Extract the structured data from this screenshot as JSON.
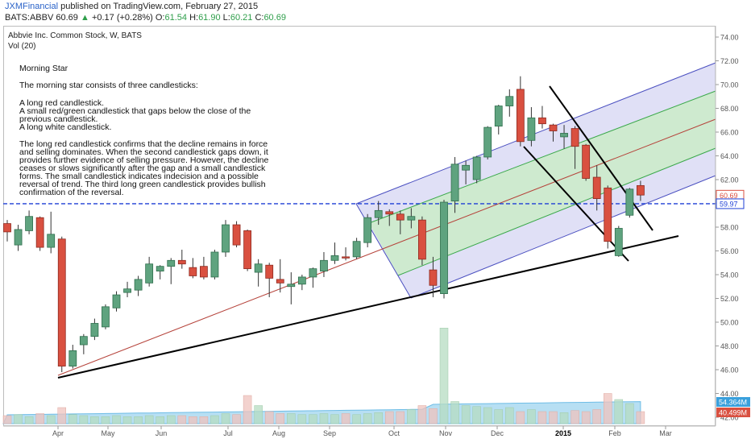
{
  "header": {
    "author": "JXMFinancial",
    "published": "published on TradingView.com, February 27, 2015",
    "ticker": "BATS:ABBV",
    "price": "60.69",
    "change": "+0.17 (+0.28%)",
    "o_label": "O:",
    "o": "61.54",
    "h_label": "H:",
    "h": "61.90",
    "l_label": "L:",
    "l": "60.21",
    "c_label": "C:",
    "c": "60.69"
  },
  "chart_title": "Abbvie Inc. Common Stock, W, BATS",
  "indicator": "Vol (20)",
  "notes": {
    "title": "Morning Star",
    "intro": "The morning star consists of three candlesticks:",
    "item1": "A long red candlestick.",
    "item2a": "A small red/green candlestick that gaps below the close of the",
    "item2b": "previous candlestick.",
    "item3": "A long white candlestick.",
    "para": [
      "The long red  candlestick confirms that the decline remains in force",
      "and selling dominates. When the second candlestick gaps down, it",
      "provides further evidence of selling pressure. However, the decline",
      "ceases or slows significantly after the gap and a small candlestick",
      "forms. The small candlestick indicates indecision and a possible",
      "reversal of trend. The third long green candlestick provides bullish",
      "confirmation of the reversal."
    ]
  },
  "colors": {
    "up": "#5fa37f",
    "down": "#d95040",
    "channel_blue": "#4a4fc0",
    "channel_fill": "#d5d6f3",
    "green_band": "#c9ecc6",
    "hline": "#1e3fd6",
    "volume_area": "#9fd4ef"
  },
  "chart_data": {
    "type": "candlestick",
    "x_tick_labels": [
      "Apr",
      "May",
      "Jun",
      "Jul",
      "Aug",
      "Sep",
      "Oct",
      "Nov",
      "Dec",
      "2015",
      "Feb",
      "Mar"
    ],
    "y_tick_labels": [
      "42.00",
      "44.00",
      "46.00",
      "48.00",
      "50.00",
      "52.00",
      "54.00",
      "56.00",
      "58.00",
      "60.00",
      "62.00",
      "64.00",
      "66.00",
      "68.00",
      "70.00",
      "72.00",
      "74.00"
    ],
    "ylim": [
      42,
      75
    ],
    "candles": [
      {
        "o": 58.3,
        "h": 58.6,
        "l": 56.8,
        "c": 57.6
      },
      {
        "o": 56.5,
        "h": 58.2,
        "l": 56.0,
        "c": 57.8
      },
      {
        "o": 57.7,
        "h": 59.4,
        "l": 57.4,
        "c": 58.9
      },
      {
        "o": 58.8,
        "h": 58.9,
        "l": 56.0,
        "c": 56.3
      },
      {
        "o": 56.3,
        "h": 59.3,
        "l": 55.8,
        "c": 57.4
      },
      {
        "o": 57.0,
        "h": 57.2,
        "l": 45.8,
        "c": 46.3
      },
      {
        "o": 46.3,
        "h": 48.1,
        "l": 46.1,
        "c": 47.6
      },
      {
        "o": 48.1,
        "h": 49.0,
        "l": 47.3,
        "c": 48.8
      },
      {
        "o": 48.8,
        "h": 50.3,
        "l": 48.5,
        "c": 49.9
      },
      {
        "o": 49.6,
        "h": 51.5,
        "l": 49.4,
        "c": 51.3
      },
      {
        "o": 51.2,
        "h": 52.6,
        "l": 50.9,
        "c": 52.3
      },
      {
        "o": 52.5,
        "h": 53.4,
        "l": 52.1,
        "c": 52.8
      },
      {
        "o": 52.7,
        "h": 53.9,
        "l": 52.2,
        "c": 53.6
      },
      {
        "o": 53.3,
        "h": 55.5,
        "l": 53.0,
        "c": 54.9
      },
      {
        "o": 54.3,
        "h": 54.8,
        "l": 53.6,
        "c": 54.7
      },
      {
        "o": 54.7,
        "h": 55.4,
        "l": 53.2,
        "c": 55.2
      },
      {
        "o": 55.2,
        "h": 56.1,
        "l": 54.5,
        "c": 54.9
      },
      {
        "o": 54.6,
        "h": 55.4,
        "l": 53.7,
        "c": 53.9
      },
      {
        "o": 54.7,
        "h": 55.5,
        "l": 53.6,
        "c": 53.8
      },
      {
        "o": 53.8,
        "h": 56.1,
        "l": 53.6,
        "c": 55.9
      },
      {
        "o": 55.9,
        "h": 58.6,
        "l": 55.5,
        "c": 58.2
      },
      {
        "o": 58.2,
        "h": 58.5,
        "l": 56.3,
        "c": 56.5
      },
      {
        "o": 57.7,
        "h": 57.8,
        "l": 54.3,
        "c": 54.5
      },
      {
        "o": 54.2,
        "h": 55.3,
        "l": 53.0,
        "c": 54.9
      },
      {
        "o": 54.8,
        "h": 55.0,
        "l": 52.1,
        "c": 53.7
      },
      {
        "o": 53.6,
        "h": 55.3,
        "l": 52.5,
        "c": 53.3
      },
      {
        "o": 53.0,
        "h": 54.2,
        "l": 51.5,
        "c": 53.2
      },
      {
        "o": 53.2,
        "h": 54.0,
        "l": 52.7,
        "c": 53.8
      },
      {
        "o": 53.8,
        "h": 54.6,
        "l": 52.9,
        "c": 54.5
      },
      {
        "o": 54.3,
        "h": 55.9,
        "l": 53.8,
        "c": 55.2
      },
      {
        "o": 55.2,
        "h": 56.7,
        "l": 54.9,
        "c": 55.6
      },
      {
        "o": 55.5,
        "h": 56.3,
        "l": 55.2,
        "c": 55.4
      },
      {
        "o": 55.5,
        "h": 57.1,
        "l": 55.3,
        "c": 56.8
      },
      {
        "o": 56.7,
        "h": 59.1,
        "l": 56.3,
        "c": 58.8
      },
      {
        "o": 58.8,
        "h": 60.2,
        "l": 58.2,
        "c": 59.4
      },
      {
        "o": 59.3,
        "h": 59.5,
        "l": 58.1,
        "c": 59.1
      },
      {
        "o": 59.1,
        "h": 59.4,
        "l": 57.4,
        "c": 58.6
      },
      {
        "o": 58.6,
        "h": 59.6,
        "l": 57.9,
        "c": 58.9
      },
      {
        "o": 58.6,
        "h": 58.9,
        "l": 54.8,
        "c": 55.3
      },
      {
        "o": 54.4,
        "h": 55.5,
        "l": 52.1,
        "c": 53.1
      },
      {
        "o": 52.4,
        "h": 60.3,
        "l": 52.0,
        "c": 60.1
      },
      {
        "o": 60.2,
        "h": 63.9,
        "l": 59.2,
        "c": 63.3
      },
      {
        "o": 62.8,
        "h": 63.6,
        "l": 61.6,
        "c": 63.2
      },
      {
        "o": 62.0,
        "h": 64.0,
        "l": 61.7,
        "c": 63.9
      },
      {
        "o": 63.9,
        "h": 66.5,
        "l": 63.7,
        "c": 66.4
      },
      {
        "o": 66.5,
        "h": 68.3,
        "l": 65.8,
        "c": 68.2
      },
      {
        "o": 68.2,
        "h": 69.6,
        "l": 67.3,
        "c": 69.0
      },
      {
        "o": 69.6,
        "h": 70.7,
        "l": 64.8,
        "c": 65.2
      },
      {
        "o": 65.3,
        "h": 68.1,
        "l": 64.8,
        "c": 67.2
      },
      {
        "o": 67.2,
        "h": 68.2,
        "l": 66.3,
        "c": 66.7
      },
      {
        "o": 66.6,
        "h": 66.7,
        "l": 65.2,
        "c": 66.1
      },
      {
        "o": 65.6,
        "h": 66.6,
        "l": 64.6,
        "c": 65.9
      },
      {
        "o": 66.3,
        "h": 66.5,
        "l": 62.9,
        "c": 64.8
      },
      {
        "o": 64.9,
        "h": 65.0,
        "l": 61.9,
        "c": 62.1
      },
      {
        "o": 62.2,
        "h": 63.2,
        "l": 59.4,
        "c": 60.4
      },
      {
        "o": 61.3,
        "h": 61.5,
        "l": 56.2,
        "c": 56.8
      },
      {
        "o": 55.6,
        "h": 58.1,
        "l": 55.5,
        "c": 57.9
      },
      {
        "o": 59.0,
        "h": 61.3,
        "l": 58.8,
        "c": 61.2
      },
      {
        "o": 61.5,
        "h": 61.9,
        "l": 60.2,
        "c": 60.7
      }
    ],
    "price_labels": [
      {
        "value": 60.69,
        "text": "60.69",
        "color": "#d95040"
      },
      {
        "value": 59.97,
        "text": "59.97",
        "color": "#1e3fd6"
      }
    ],
    "volume_labels": [
      {
        "text": "54.364M",
        "color": "#3aa0dc"
      },
      {
        "text": "40.499M",
        "color": "#d95040"
      }
    ],
    "horizontal_line": 59.97
  }
}
